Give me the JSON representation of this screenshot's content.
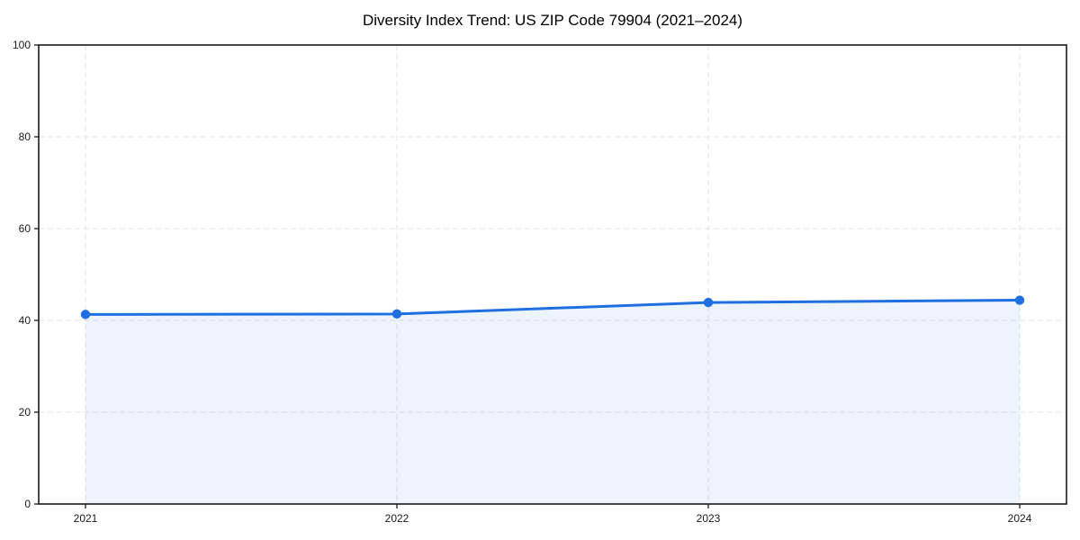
{
  "chart_data": {
    "type": "area",
    "title": "Diversity Index Trend: US ZIP Code 79904 (2021–2024)",
    "xlabel": "",
    "ylabel": "",
    "categories": [
      "2021",
      "2022",
      "2023",
      "2024"
    ],
    "series": [
      {
        "name": "Diversity Index",
        "values": [
          41.3,
          41.4,
          43.9,
          44.4
        ]
      }
    ],
    "ylim": [
      0,
      100
    ],
    "yticks": [
      0,
      20,
      40,
      60,
      80,
      100
    ],
    "grid": true,
    "grid_style": "dashed",
    "legend_position": "none",
    "colors": {
      "line": "#1f6fe0",
      "marker": "#1f6fe0",
      "area_fill": "#1f6fe0",
      "grid": "#e2e2e2",
      "frame": "#1a1a1a",
      "tick_text": "#1a1a1a",
      "background": "#ffffff"
    }
  }
}
